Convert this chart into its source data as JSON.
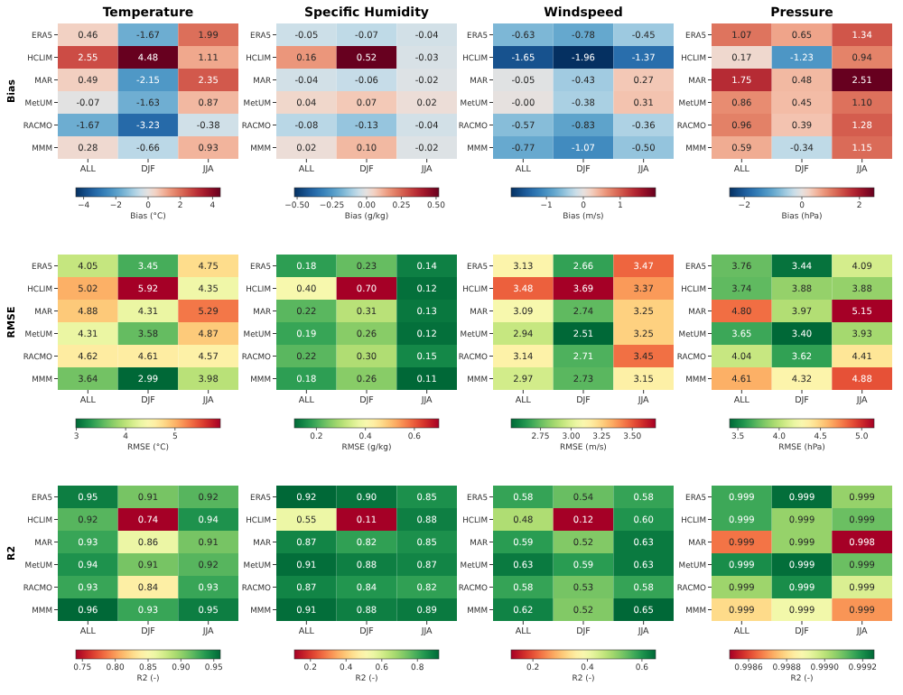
{
  "chart_data": [
    {
      "type": "heatmap",
      "title": "Temperature",
      "ylabel": "Bias",
      "categories": [
        "ALL",
        "DJF",
        "JJA"
      ],
      "y_categories": [
        "ERA5",
        "HCLIM",
        "MAR",
        "MetUM",
        "RACMO",
        "MMM"
      ],
      "cells": [
        [
          0.46,
          -1.67,
          1.99
        ],
        [
          2.55,
          4.48,
          1.11
        ],
        [
          0.49,
          -2.15,
          2.35
        ],
        [
          -0.07,
          -1.63,
          0.87
        ],
        [
          -1.67,
          -3.23,
          -0.38
        ],
        [
          0.28,
          -0.66,
          0.93
        ]
      ],
      "cell_labels": [
        [
          "0.46",
          "-1.67",
          "1.99"
        ],
        [
          "2.55",
          "4.48",
          "1.11"
        ],
        [
          "0.49",
          "-2.15",
          "2.35"
        ],
        [
          "-0.07",
          "-1.63",
          "0.87"
        ],
        [
          "-1.67",
          "-3.23",
          "-0.38"
        ],
        [
          "0.28",
          "-0.66",
          "0.93"
        ]
      ],
      "clim": [
        -4.48,
        4.48
      ],
      "cticks": [
        {
          "value": -4,
          "label": "−4"
        },
        {
          "value": -2,
          "label": "−2"
        },
        0,
        2,
        4
      ],
      "clabel": "Bias (°C)",
      "colors": [
        "#053061",
        "#2166ac",
        "#4393c3",
        "#92c5de",
        "#f7f7f7",
        "#f4a582",
        "#d6604d",
        "#b2182b",
        "#67001f"
      ]
    },
    {
      "type": "heatmap",
      "title": "Specific Humidity",
      "categories": [
        "ALL",
        "DJF",
        "JJA"
      ],
      "y_categories": [
        "ERA5",
        "HCLIM",
        "MAR",
        "MetUM",
        "RACMO",
        "MMM"
      ],
      "cells": [
        [
          -0.05,
          -0.07,
          -0.04
        ],
        [
          0.16,
          0.52,
          -0.03
        ],
        [
          -0.04,
          -0.06,
          -0.02
        ],
        [
          0.04,
          0.07,
          0.02
        ],
        [
          -0.08,
          -0.13,
          -0.04
        ],
        [
          0.02,
          0.1,
          -0.02
        ]
      ],
      "cell_labels": [
        [
          "-0.05",
          "-0.07",
          "-0.04"
        ],
        [
          "0.16",
          "0.52",
          "-0.03"
        ],
        [
          "-0.04",
          "-0.06",
          "-0.02"
        ],
        [
          "0.04",
          "0.07",
          "0.02"
        ],
        [
          "-0.08",
          "-0.13",
          "-0.04"
        ],
        [
          "0.02",
          "0.10",
          "-0.02"
        ]
      ],
      "clim": [
        -0.52,
        0.52
      ],
      "cticks": [
        {
          "value": -0.5,
          "label": "−0.50"
        },
        {
          "value": -0.25,
          "label": "−0.25"
        },
        {
          "value": 0,
          "label": "0.00"
        },
        0.25,
        {
          "value": 0.5,
          "label": "0.50"
        }
      ],
      "clabel": "Bias (g/kg)",
      "colors": [
        "#053061",
        "#2166ac",
        "#4393c3",
        "#92c5de",
        "#f7f7f7",
        "#f4a582",
        "#d6604d",
        "#b2182b",
        "#67001f"
      ]
    },
    {
      "type": "heatmap",
      "title": "Windspeed",
      "categories": [
        "ALL",
        "DJF",
        "JJA"
      ],
      "y_categories": [
        "ERA5",
        "HCLIM",
        "MAR",
        "MetUM",
        "RACMO",
        "MMM"
      ],
      "cells": [
        [
          -0.63,
          -0.78,
          -0.45
        ],
        [
          -1.65,
          -1.96,
          -1.37
        ],
        [
          -0.05,
          -0.43,
          0.27
        ],
        [
          -0.0,
          -0.38,
          0.31
        ],
        [
          -0.57,
          -0.83,
          -0.36
        ],
        [
          -0.77,
          -1.07,
          -0.5
        ]
      ],
      "cell_labels": [
        [
          "-0.63",
          "-0.78",
          "-0.45"
        ],
        [
          "-1.65",
          "-1.96",
          "-1.37"
        ],
        [
          "-0.05",
          "-0.43",
          "0.27"
        ],
        [
          "-0.00",
          "-0.38",
          "0.31"
        ],
        [
          "-0.57",
          "-0.83",
          "-0.36"
        ],
        [
          "-0.77",
          "-1.07",
          "-0.50"
        ]
      ],
      "clim": [
        -1.96,
        1.96
      ],
      "cticks": [
        {
          "value": -1,
          "label": "−1"
        },
        0,
        1
      ],
      "clabel": "Bias (m/s)",
      "colors": [
        "#053061",
        "#2166ac",
        "#4393c3",
        "#92c5de",
        "#f7f7f7",
        "#f4a582",
        "#d6604d",
        "#b2182b",
        "#67001f"
      ]
    },
    {
      "type": "heatmap",
      "title": "Pressure",
      "categories": [
        "ALL",
        "DJF",
        "JJA"
      ],
      "y_categories": [
        "ERA5",
        "HCLIM",
        "MAR",
        "MetUM",
        "RACMO",
        "MMM"
      ],
      "cells": [
        [
          1.07,
          0.65,
          1.34
        ],
        [
          0.17,
          -1.23,
          0.94
        ],
        [
          1.75,
          0.48,
          2.51
        ],
        [
          0.86,
          0.45,
          1.1
        ],
        [
          0.96,
          0.39,
          1.28
        ],
        [
          0.59,
          -0.34,
          1.15
        ]
      ],
      "cell_labels": [
        [
          "1.07",
          "0.65",
          "1.34"
        ],
        [
          "0.17",
          "-1.23",
          "0.94"
        ],
        [
          "1.75",
          "0.48",
          "2.51"
        ],
        [
          "0.86",
          "0.45",
          "1.10"
        ],
        [
          "0.96",
          "0.39",
          "1.28"
        ],
        [
          "0.59",
          "-0.34",
          "1.15"
        ]
      ],
      "clim": [
        -2.51,
        2.51
      ],
      "cticks": [
        {
          "value": -2,
          "label": "−2"
        },
        0,
        2
      ],
      "clabel": "Bias (hPa)",
      "colors": [
        "#053061",
        "#2166ac",
        "#4393c3",
        "#92c5de",
        "#f7f7f7",
        "#f4a582",
        "#d6604d",
        "#b2182b",
        "#67001f"
      ]
    },
    {
      "type": "heatmap",
      "ylabel": "RMSE",
      "categories": [
        "ALL",
        "DJF",
        "JJA"
      ],
      "y_categories": [
        "ERA5",
        "HCLIM",
        "MAR",
        "MetUM",
        "RACMO",
        "MMM"
      ],
      "cells": [
        [
          4.05,
          3.45,
          4.75
        ],
        [
          5.02,
          5.92,
          4.35
        ],
        [
          4.88,
          4.31,
          5.29
        ],
        [
          4.31,
          3.58,
          4.87
        ],
        [
          4.62,
          4.61,
          4.57
        ],
        [
          3.64,
          2.99,
          3.98
        ]
      ],
      "cell_labels": [
        [
          "4.05",
          "3.45",
          "4.75"
        ],
        [
          "5.02",
          "5.92",
          "4.35"
        ],
        [
          "4.88",
          "4.31",
          "5.29"
        ],
        [
          "4.31",
          "3.58",
          "4.87"
        ],
        [
          "4.62",
          "4.61",
          "4.57"
        ],
        [
          "3.64",
          "2.99",
          "3.98"
        ]
      ],
      "clim": [
        2.99,
        5.92
      ],
      "cticks": [
        3,
        4,
        5
      ],
      "clabel": "RMSE (°C)",
      "colors": [
        "#006837",
        "#1a9850",
        "#66bd63",
        "#a6d96a",
        "#d9ef8b",
        "#ffffbf",
        "#fee08b",
        "#fdae61",
        "#f46d43",
        "#d73027",
        "#a50026"
      ]
    },
    {
      "type": "heatmap",
      "categories": [
        "ALL",
        "DJF",
        "JJA"
      ],
      "y_categories": [
        "ERA5",
        "HCLIM",
        "MAR",
        "MetUM",
        "RACMO",
        "MMM"
      ],
      "cells": [
        [
          0.18,
          0.23,
          0.14
        ],
        [
          0.4,
          0.7,
          0.12
        ],
        [
          0.22,
          0.31,
          0.13
        ],
        [
          0.19,
          0.26,
          0.12
        ],
        [
          0.22,
          0.3,
          0.15
        ],
        [
          0.18,
          0.26,
          0.11
        ]
      ],
      "cell_labels": [
        [
          "0.18",
          "0.23",
          "0.14"
        ],
        [
          "0.40",
          "0.70",
          "0.12"
        ],
        [
          "0.22",
          "0.31",
          "0.13"
        ],
        [
          "0.19",
          "0.26",
          "0.12"
        ],
        [
          "0.22",
          "0.30",
          "0.15"
        ],
        [
          "0.18",
          "0.26",
          "0.11"
        ]
      ],
      "clim": [
        0.11,
        0.7
      ],
      "cticks": [
        0.2,
        0.4,
        0.6
      ],
      "clabel": "RMSE (g/kg)",
      "colors": [
        "#006837",
        "#1a9850",
        "#66bd63",
        "#a6d96a",
        "#d9ef8b",
        "#ffffbf",
        "#fee08b",
        "#fdae61",
        "#f46d43",
        "#d73027",
        "#a50026"
      ]
    },
    {
      "type": "heatmap",
      "categories": [
        "ALL",
        "DJF",
        "JJA"
      ],
      "y_categories": [
        "ERA5",
        "HCLIM",
        "MAR",
        "MetUM",
        "RACMO",
        "MMM"
      ],
      "cells": [
        [
          3.13,
          2.66,
          3.47
        ],
        [
          3.48,
          3.69,
          3.37
        ],
        [
          3.09,
          2.74,
          3.25
        ],
        [
          2.94,
          2.51,
          3.25
        ],
        [
          3.14,
          2.71,
          3.45
        ],
        [
          2.97,
          2.73,
          3.15
        ]
      ],
      "cell_labels": [
        [
          "3.13",
          "2.66",
          "3.47"
        ],
        [
          "3.48",
          "3.69",
          "3.37"
        ],
        [
          "3.09",
          "2.74",
          "3.25"
        ],
        [
          "2.94",
          "2.51",
          "3.25"
        ],
        [
          "3.14",
          "2.71",
          "3.45"
        ],
        [
          "2.97",
          "2.73",
          "3.15"
        ]
      ],
      "clim": [
        2.51,
        3.69
      ],
      "cticks": [
        2.75,
        {
          "value": 3,
          "label": "3.00"
        },
        3.25,
        {
          "value": 3.5,
          "label": "3.50"
        }
      ],
      "clabel": "RMSE (m/s)",
      "colors": [
        "#006837",
        "#1a9850",
        "#66bd63",
        "#a6d96a",
        "#d9ef8b",
        "#ffffbf",
        "#fee08b",
        "#fdae61",
        "#f46d43",
        "#d73027",
        "#a50026"
      ]
    },
    {
      "type": "heatmap",
      "categories": [
        "ALL",
        "DJF",
        "JJA"
      ],
      "y_categories": [
        "ERA5",
        "HCLIM",
        "MAR",
        "MetUM",
        "RACMO",
        "MMM"
      ],
      "cells": [
        [
          3.76,
          3.44,
          4.09
        ],
        [
          3.74,
          3.88,
          3.88
        ],
        [
          4.8,
          3.97,
          5.15
        ],
        [
          3.65,
          3.4,
          3.93
        ],
        [
          4.04,
          3.62,
          4.41
        ],
        [
          4.61,
          4.32,
          4.88
        ]
      ],
      "cell_labels": [
        [
          "3.76",
          "3.44",
          "4.09"
        ],
        [
          "3.74",
          "3.88",
          "3.88"
        ],
        [
          "4.80",
          "3.97",
          "5.15"
        ],
        [
          "3.65",
          "3.40",
          "3.93"
        ],
        [
          "4.04",
          "3.62",
          "4.41"
        ],
        [
          "4.61",
          "4.32",
          "4.88"
        ]
      ],
      "clim": [
        3.4,
        5.15
      ],
      "cticks": [
        3.5,
        {
          "value": 4,
          "label": "4.0"
        },
        4.5,
        {
          "value": 5,
          "label": "5.0"
        }
      ],
      "clabel": "RMSE (hPa)",
      "colors": [
        "#006837",
        "#1a9850",
        "#66bd63",
        "#a6d96a",
        "#d9ef8b",
        "#ffffbf",
        "#fee08b",
        "#fdae61",
        "#f46d43",
        "#d73027",
        "#a50026"
      ]
    },
    {
      "type": "heatmap",
      "ylabel": "R2",
      "categories": [
        "ALL",
        "DJF",
        "JJA"
      ],
      "y_categories": [
        "ERA5",
        "HCLIM",
        "MAR",
        "MetUM",
        "RACMO",
        "MMM"
      ],
      "cells": [
        [
          0.95,
          0.91,
          0.92
        ],
        [
          0.92,
          0.74,
          0.94
        ],
        [
          0.93,
          0.86,
          0.91
        ],
        [
          0.94,
          0.91,
          0.92
        ],
        [
          0.93,
          0.84,
          0.93
        ],
        [
          0.96,
          0.93,
          0.95
        ]
      ],
      "cell_labels": [
        [
          "0.95",
          "0.91",
          "0.92"
        ],
        [
          "0.92",
          "0.74",
          "0.94"
        ],
        [
          "0.93",
          "0.86",
          "0.91"
        ],
        [
          "0.94",
          "0.91",
          "0.92"
        ],
        [
          "0.93",
          "0.84",
          "0.93"
        ],
        [
          "0.96",
          "0.93",
          "0.95"
        ]
      ],
      "clim": [
        0.74,
        0.96
      ],
      "cticks": [
        0.75,
        {
          "value": 0.8,
          "label": "0.80"
        },
        0.85,
        {
          "value": 0.9,
          "label": "0.90"
        },
        0.95
      ],
      "clabel": "R2 (-)",
      "colors": [
        "#a50026",
        "#d73027",
        "#f46d43",
        "#fdae61",
        "#fee08b",
        "#ffffbf",
        "#d9ef8b",
        "#a6d96a",
        "#66bd63",
        "#1a9850",
        "#006837"
      ]
    },
    {
      "type": "heatmap",
      "categories": [
        "ALL",
        "DJF",
        "JJA"
      ],
      "y_categories": [
        "ERA5",
        "HCLIM",
        "MAR",
        "MetUM",
        "RACMO",
        "MMM"
      ],
      "cells": [
        [
          0.92,
          0.9,
          0.85
        ],
        [
          0.55,
          0.11,
          0.88
        ],
        [
          0.87,
          0.82,
          0.85
        ],
        [
          0.91,
          0.88,
          0.87
        ],
        [
          0.87,
          0.84,
          0.82
        ],
        [
          0.91,
          0.88,
          0.89
        ]
      ],
      "cell_labels": [
        [
          "0.92",
          "0.90",
          "0.85"
        ],
        [
          "0.55",
          "0.11",
          "0.88"
        ],
        [
          "0.87",
          "0.82",
          "0.85"
        ],
        [
          "0.91",
          "0.88",
          "0.87"
        ],
        [
          "0.87",
          "0.84",
          "0.82"
        ],
        [
          "0.91",
          "0.88",
          "0.89"
        ]
      ],
      "clim": [
        0.11,
        0.92
      ],
      "cticks": [
        0.2,
        0.4,
        0.6,
        0.8
      ],
      "clabel": "R2 (-)",
      "colors": [
        "#a50026",
        "#d73027",
        "#f46d43",
        "#fdae61",
        "#fee08b",
        "#ffffbf",
        "#d9ef8b",
        "#a6d96a",
        "#66bd63",
        "#1a9850",
        "#006837"
      ]
    },
    {
      "type": "heatmap",
      "categories": [
        "ALL",
        "DJF",
        "JJA"
      ],
      "y_categories": [
        "ERA5",
        "HCLIM",
        "MAR",
        "MetUM",
        "RACMO",
        "MMM"
      ],
      "cells": [
        [
          0.58,
          0.54,
          0.58
        ],
        [
          0.48,
          0.12,
          0.6
        ],
        [
          0.59,
          0.52,
          0.63
        ],
        [
          0.63,
          0.59,
          0.63
        ],
        [
          0.58,
          0.53,
          0.58
        ],
        [
          0.62,
          0.52,
          0.65
        ]
      ],
      "cell_labels": [
        [
          "0.58",
          "0.54",
          "0.58"
        ],
        [
          "0.48",
          "0.12",
          "0.60"
        ],
        [
          "0.59",
          "0.52",
          "0.63"
        ],
        [
          "0.63",
          "0.59",
          "0.63"
        ],
        [
          "0.58",
          "0.53",
          "0.58"
        ],
        [
          "0.62",
          "0.52",
          "0.65"
        ]
      ],
      "clim": [
        0.12,
        0.65
      ],
      "cticks": [
        0.2,
        0.4,
        0.6
      ],
      "clabel": "R2 (-)",
      "colors": [
        "#a50026",
        "#d73027",
        "#f46d43",
        "#fdae61",
        "#fee08b",
        "#ffffbf",
        "#d9ef8b",
        "#a6d96a",
        "#66bd63",
        "#1a9850",
        "#006837"
      ]
    },
    {
      "type": "heatmap",
      "categories": [
        "ALL",
        "DJF",
        "JJA"
      ],
      "y_categories": [
        "ERA5",
        "HCLIM",
        "MAR",
        "MetUM",
        "RACMO",
        "MMM"
      ],
      "cells": [
        [
          0.99915,
          0.99925,
          0.99905
        ],
        [
          0.99915,
          0.99905,
          0.9991
        ],
        [
          0.99866,
          0.99905,
          0.9985
        ],
        [
          0.9992,
          0.99925,
          0.9991
        ],
        [
          0.99904,
          0.9992,
          0.99895
        ],
        [
          0.9988,
          0.9989,
          0.9987
        ]
      ],
      "cell_labels": [
        [
          "0.999",
          "0.999",
          "0.999"
        ],
        [
          "0.999",
          "0.999",
          "0.999"
        ],
        [
          "0.999",
          "0.999",
          "0.998"
        ],
        [
          "0.999",
          "0.999",
          "0.999"
        ],
        [
          "0.999",
          "0.999",
          "0.999"
        ],
        [
          "0.999",
          "0.999",
          "0.999"
        ]
      ],
      "clim": [
        0.9985,
        0.99926
      ],
      "cticks": [
        0.9986,
        0.9988,
        {
          "value": 0.999,
          "label": "0.9990"
        },
        0.9992
      ],
      "clabel": "R2 (-)",
      "colors": [
        "#a50026",
        "#d73027",
        "#f46d43",
        "#fdae61",
        "#fee08b",
        "#ffffbf",
        "#d9ef8b",
        "#a6d96a",
        "#66bd63",
        "#1a9850",
        "#006837"
      ]
    }
  ]
}
